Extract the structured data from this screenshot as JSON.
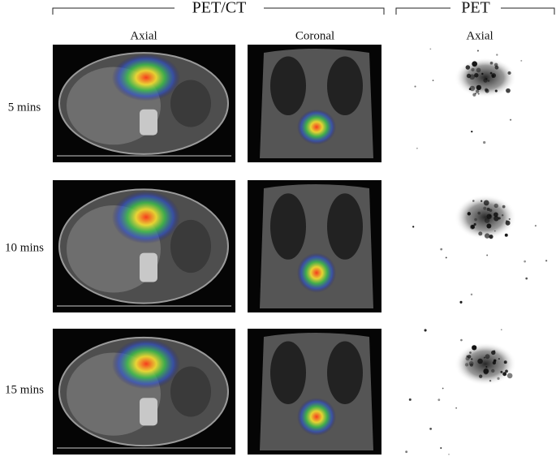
{
  "header": {
    "groups": [
      "PET/CT",
      "PET"
    ]
  },
  "columns": [
    "Axial",
    "Coronal",
    "Axial"
  ],
  "rows": [
    "5 mins",
    "10 mins",
    "15 mins"
  ]
}
